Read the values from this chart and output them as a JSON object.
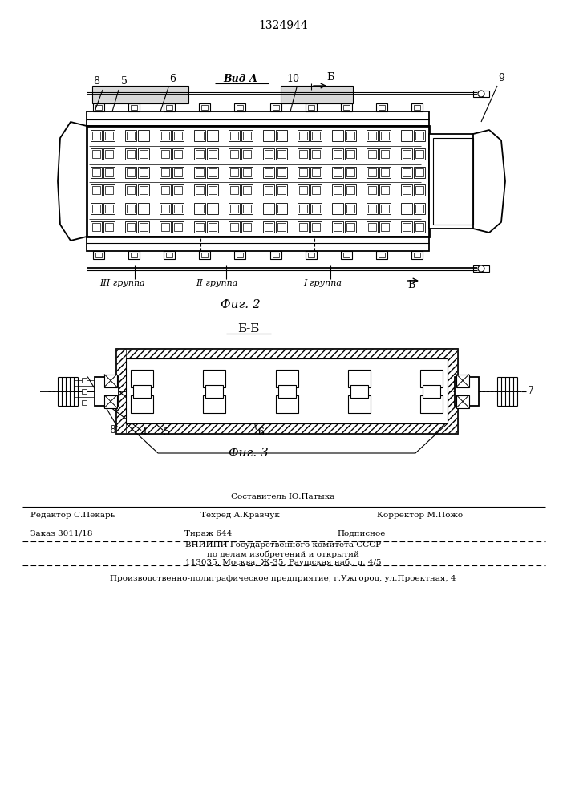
{
  "patent_number": "1324944",
  "bg_color": "#ffffff",
  "line_color": "#000000",
  "fig2_caption": "Фиг. 2",
  "fig3_caption": "Фиг. 3",
  "footer": {
    "sestavitel": "Составитель Ю.Патыка",
    "line1_left": "Редактор С.Пекарь",
    "line1_center": "Техред А.Кравчук",
    "line1_right": "Корректор М.Пожо",
    "line2_left": "Заказ 3011/18",
    "line2_center": "Тираж 644",
    "line2_right": "Подписное",
    "line3": "ВНИИПИ Государственного комитета СССР",
    "line4": "по делам изобретений и открытий",
    "line5": "113035, Москва, Ж-35, Раушская наб., д. 4/5",
    "line6": "Производственно-полиграфическое предприятие, г.Ужгород, ул.Проектная, 4"
  }
}
